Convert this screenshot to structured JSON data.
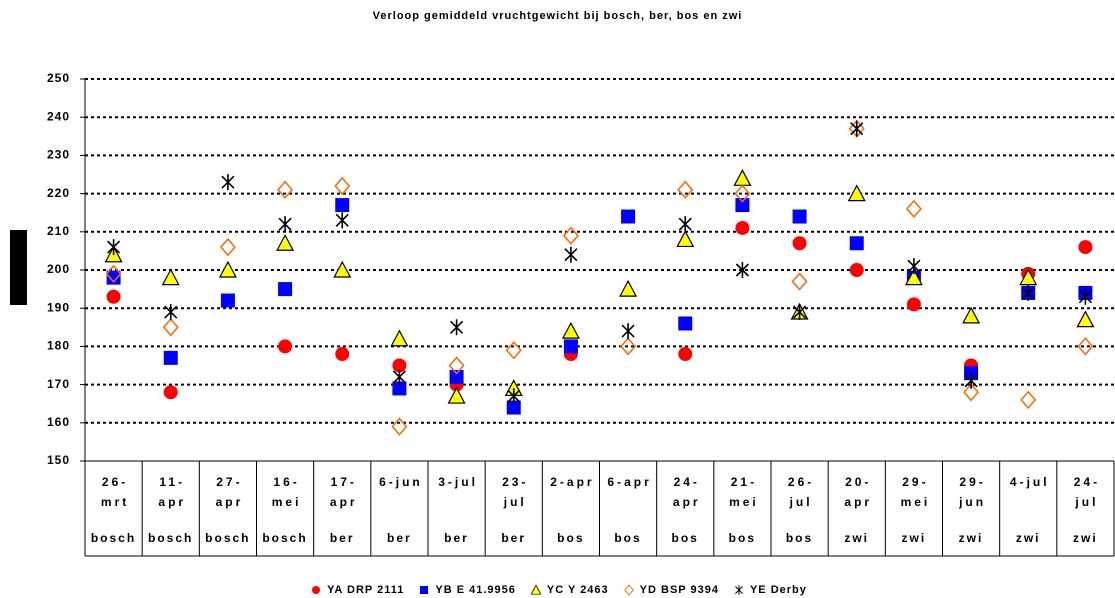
{
  "chart_data": {
    "type": "scatter",
    "title": "Verloop gemiddeld vruchtgewicht bij bosch, ber, bos en zwi",
    "categories": [
      "26-mrt",
      "11-apr",
      "27-apr",
      "16-mei",
      "17-apr",
      "6-jun",
      "3-jul",
      "23-jul",
      "2-apr",
      "6-apr",
      "24-apr",
      "21-mei",
      "26-jul",
      "20-apr",
      "29-mei",
      "29-jun",
      "4-jul",
      "24-jul"
    ],
    "groups": [
      "bosch",
      "bosch",
      "bosch",
      "bosch",
      "ber",
      "ber",
      "ber",
      "ber",
      "bos",
      "bos",
      "bos",
      "bos",
      "bos",
      "zwi",
      "zwi",
      "zwi",
      "zwi",
      "zwi"
    ],
    "ylim": [
      150,
      250
    ],
    "yticks": [
      150,
      160,
      170,
      180,
      190,
      200,
      210,
      220,
      230,
      240,
      250
    ],
    "grid": true,
    "legend": "bottom",
    "series": [
      {
        "name": "YA DRP 2111",
        "color": "#ff0000",
        "marker": "circle",
        "values": [
          193,
          168,
          null,
          180,
          178,
          175,
          170,
          null,
          178,
          null,
          178,
          211,
          207,
          200,
          191,
          175,
          199,
          206
        ]
      },
      {
        "name": "YB E 41.9956",
        "color": "#0000ff",
        "marker": "square",
        "values": [
          198,
          177,
          192,
          195,
          217,
          169,
          172,
          164,
          180,
          214,
          186,
          217,
          214,
          207,
          198,
          173,
          194,
          194
        ]
      },
      {
        "name": "YC Y 2463",
        "color": "#ffff00",
        "marker": "triangle",
        "values": [
          204,
          198,
          200,
          207,
          200,
          182,
          167,
          169,
          184,
          195,
          208,
          224,
          189,
          220,
          198,
          188,
          198,
          187
        ]
      },
      {
        "name": "YD BSP 9394",
        "color": "#ff6600",
        "marker": "diamond",
        "values": [
          199,
          185,
          206,
          221,
          222,
          159,
          175,
          179,
          209,
          180,
          221,
          220,
          197,
          237,
          216,
          168,
          166,
          180
        ]
      },
      {
        "name": "YE Derby",
        "color": "#000000",
        "marker": "star",
        "values": [
          206,
          189,
          223,
          212,
          213,
          172,
          185,
          167,
          204,
          184,
          212,
          200,
          189,
          237,
          201,
          171,
          194,
          193
        ]
      }
    ]
  }
}
